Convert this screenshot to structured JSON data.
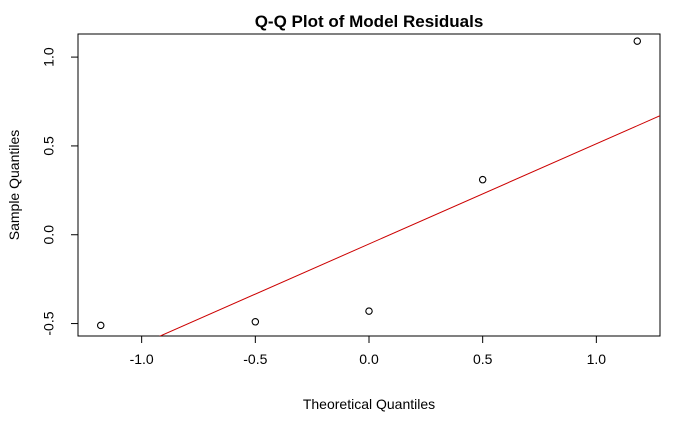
{
  "chart_data": {
    "type": "scatter",
    "title": "Q-Q Plot of Model Residuals",
    "xlabel": "Theoretical Quantiles",
    "ylabel": "Sample Quantiles",
    "xlim": [
      -1.28,
      1.28
    ],
    "ylim": [
      -0.57,
      1.13
    ],
    "x_ticks": [
      -1.0,
      -0.5,
      0.0,
      0.5,
      1.0
    ],
    "x_tick_labels": [
      "-1.0",
      "-0.5",
      "0.0",
      "0.5",
      "1.0"
    ],
    "y_ticks": [
      -0.5,
      0.0,
      0.5,
      1.0
    ],
    "y_tick_labels": [
      "-0.5",
      "0.0",
      "0.5",
      "1.0"
    ],
    "grid": false,
    "legend": "none",
    "points": [
      {
        "x": -1.18,
        "y": -0.51
      },
      {
        "x": -0.5,
        "y": -0.49
      },
      {
        "x": 0.0,
        "y": -0.43
      },
      {
        "x": 0.5,
        "y": 0.31
      },
      {
        "x": 1.18,
        "y": 1.09
      }
    ],
    "reference_line": {
      "slope": 0.564,
      "intercept": -0.052,
      "color": "#cc0000"
    },
    "point_color": "#000000"
  }
}
